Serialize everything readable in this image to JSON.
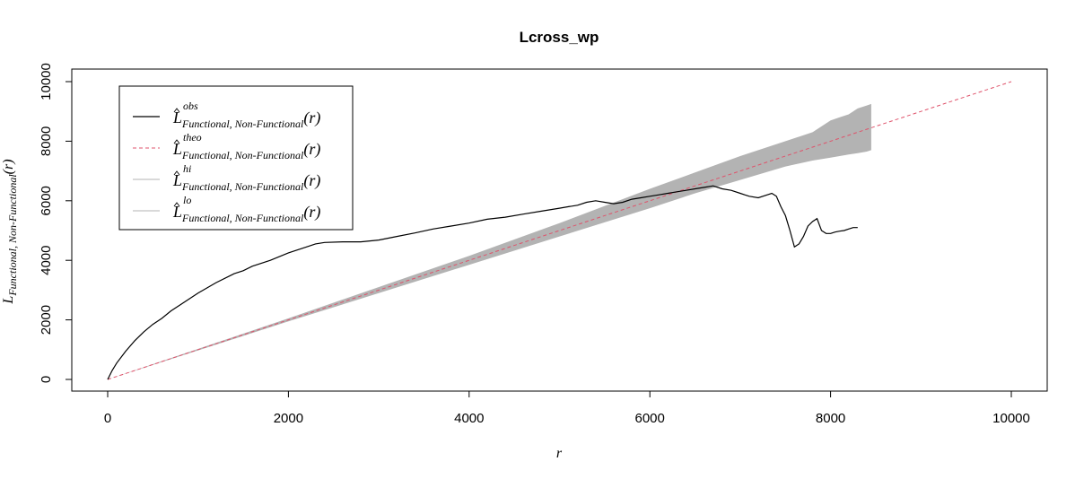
{
  "chart_data": {
    "type": "line",
    "title": "Lcross_wp",
    "xlabel": "r",
    "ylabel": {
      "base": "L",
      "sub": "Functional, Non-Functional",
      "arg": "(r)"
    },
    "xlim": [
      0,
      10000
    ],
    "ylim": [
      0,
      10000
    ],
    "x_ticks": [
      0,
      2000,
      4000,
      6000,
      8000,
      10000
    ],
    "y_ticks": [
      0,
      2000,
      4000,
      6000,
      8000,
      10000
    ],
    "grid": false,
    "legend_position": "top-left",
    "colors": {
      "obs": "#000000",
      "theo": "#DF536B",
      "envelope": "#B3B3B3",
      "hi": "#B3B3B3",
      "lo": "#B3B3B3"
    },
    "legend": [
      {
        "key": "obs",
        "base": "L",
        "sup": "obs",
        "sub": "Functional, Non-Functional",
        "arg": "(r)",
        "style": "solid"
      },
      {
        "key": "theo",
        "base": "L",
        "sup": "theo",
        "sub": "Functional, Non-Functional",
        "arg": "(r)",
        "style": "dashed"
      },
      {
        "key": "hi",
        "base": "L",
        "sup": "hi",
        "sub": "Functional, Non-Functional",
        "arg": "(r)",
        "style": "solid"
      },
      {
        "key": "lo",
        "base": "L",
        "sup": "lo",
        "sub": "Functional, Non-Functional",
        "arg": "(r)",
        "style": "solid"
      }
    ],
    "series": [
      {
        "key": "obs",
        "x": [
          0,
          50,
          100,
          200,
          300,
          400,
          500,
          600,
          700,
          800,
          1000,
          1200,
          1400,
          1500,
          1600,
          1800,
          2000,
          2200,
          2300,
          2400,
          2600,
          2800,
          3000,
          3200,
          3400,
          3600,
          3800,
          4000,
          4200,
          4400,
          4600,
          4800,
          5000,
          5100,
          5200,
          5300,
          5400,
          5500,
          5600,
          5700,
          5800,
          5900,
          6000,
          6100,
          6200,
          6300,
          6400,
          6500,
          6600,
          6700,
          6800,
          6900,
          7000,
          7050,
          7100,
          7200,
          7300,
          7350,
          7400,
          7450,
          7500,
          7550,
          7600,
          7650,
          7700,
          7750,
          7800,
          7850,
          7900,
          7950,
          8000,
          8050,
          8100,
          8150,
          8200,
          8250,
          8300
        ],
        "y": [
          0,
          300,
          550,
          950,
          1300,
          1600,
          1850,
          2050,
          2300,
          2500,
          2900,
          3250,
          3550,
          3650,
          3800,
          4000,
          4250,
          4450,
          4550,
          4600,
          4620,
          4620,
          4680,
          4800,
          4920,
          5050,
          5150,
          5250,
          5380,
          5450,
          5550,
          5650,
          5750,
          5800,
          5850,
          5950,
          6000,
          5950,
          5900,
          5950,
          6050,
          6100,
          6150,
          6200,
          6250,
          6300,
          6350,
          6400,
          6450,
          6500,
          6400,
          6350,
          6250,
          6200,
          6150,
          6100,
          6200,
          6250,
          6150,
          5800,
          5500,
          5000,
          4450,
          4550,
          4800,
          5150,
          5300,
          5400,
          5000,
          4900,
          4900,
          4950,
          4980,
          5000,
          5050,
          5100,
          5100
        ]
      },
      {
        "key": "theo",
        "x": [
          0,
          10000
        ],
        "y": [
          0,
          10000
        ]
      },
      {
        "key": "hi",
        "x": [
          0,
          2000,
          4000,
          5000,
          6000,
          6500,
          7000,
          7500,
          7800,
          8000,
          8100,
          8200,
          8300,
          8400,
          8450
        ],
        "y": [
          0,
          2050,
          4150,
          5250,
          6400,
          6950,
          7500,
          8000,
          8300,
          8700,
          8800,
          8900,
          9100,
          9200,
          9250
        ]
      },
      {
        "key": "lo",
        "x": [
          0,
          2000,
          4000,
          5000,
          6000,
          6500,
          7000,
          7500,
          7800,
          8000,
          8100,
          8200,
          8300,
          8400,
          8450
        ],
        "y": [
          0,
          1950,
          3850,
          4800,
          5750,
          6250,
          6700,
          7150,
          7350,
          7450,
          7500,
          7550,
          7600,
          7650,
          7700
        ]
      }
    ]
  }
}
